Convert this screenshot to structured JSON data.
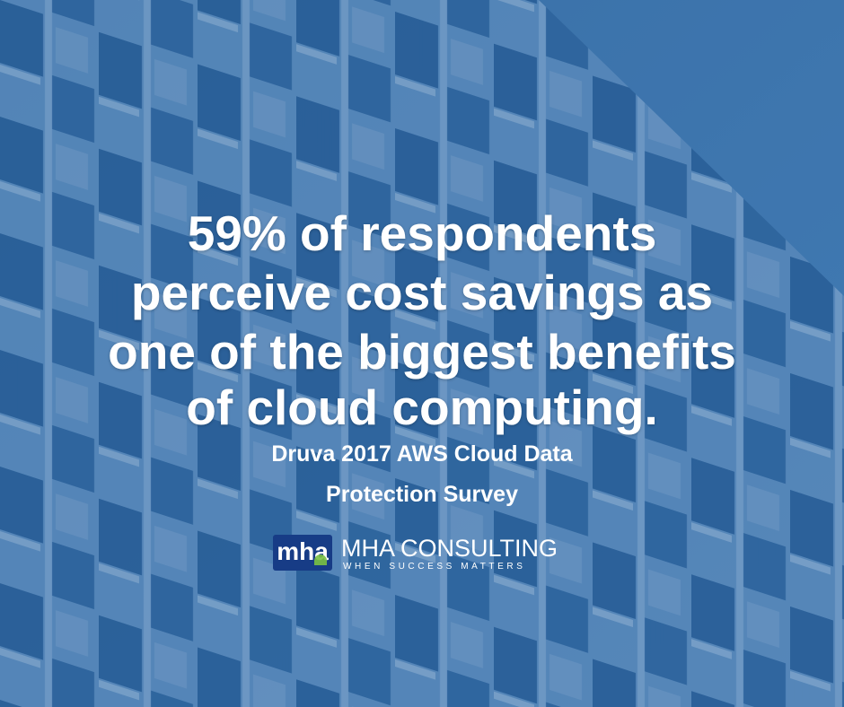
{
  "headline": {
    "lines": [
      "59% of respondents",
      "perceive cost savings as",
      "one of the biggest benefits",
      "of cloud computing."
    ]
  },
  "source": {
    "lines": [
      "Druva 2017 AWS Cloud Data",
      "Protection Survey"
    ]
  },
  "logo": {
    "mark": "mha",
    "name": "MHA CONSULTING",
    "tagline": "WHEN SUCCESS MATTERS"
  }
}
